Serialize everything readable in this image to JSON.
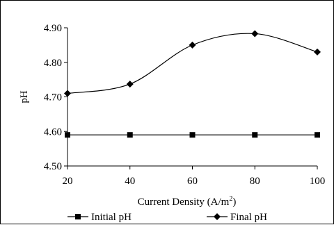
{
  "chart_data": {
    "type": "line",
    "title": "",
    "xlabel": "Current Density (A/m²)",
    "xlabel_parts": {
      "main": "Current Density (A/m",
      "superscript": "2",
      "close": ")"
    },
    "ylabel": "pH",
    "categories": [
      "20",
      "40",
      "60",
      "80",
      "100"
    ],
    "x": [
      20,
      40,
      60,
      80,
      100
    ],
    "xlim": [
      20,
      100
    ],
    "ylim": [
      4.5,
      4.9
    ],
    "yticks": [
      "4.50",
      "4.60",
      "4.70",
      "4.80",
      "4.90"
    ],
    "grid": false,
    "legend_position": "bottom",
    "series": [
      {
        "name": "Initial pH",
        "marker": "square",
        "smooth": false,
        "color": "#000000",
        "values": [
          4.59,
          4.59,
          4.59,
          4.59,
          4.59
        ]
      },
      {
        "name": "Final pH",
        "marker": "diamond",
        "smooth": true,
        "color": "#000000",
        "values": [
          4.71,
          4.737,
          4.85,
          4.883,
          4.83
        ]
      }
    ]
  }
}
